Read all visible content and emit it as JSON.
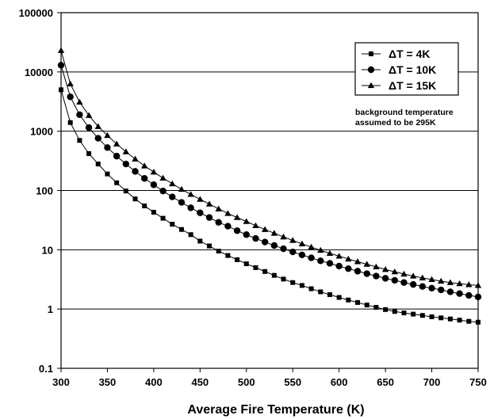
{
  "chart_data": {
    "type": "line",
    "xlabel": "Average Fire Temperature (K)",
    "ylabel": "",
    "xlim": [
      300,
      750
    ],
    "ylim": [
      0.1,
      100000
    ],
    "yscale": "log",
    "x_ticks": [
      "300",
      "350",
      "400",
      "450",
      "500",
      "550",
      "600",
      "650",
      "700",
      "750"
    ],
    "y_ticks": [
      "0.1",
      "1",
      "10",
      "100",
      "1000",
      "10000",
      "100000"
    ],
    "grid": "horizontal",
    "legend_position": "top-right",
    "annotation": [
      "background temperature",
      "assumed to be 295K"
    ],
    "x": [
      300,
      310,
      320,
      330,
      340,
      350,
      360,
      370,
      380,
      390,
      400,
      410,
      420,
      430,
      440,
      450,
      460,
      470,
      480,
      490,
      500,
      510,
      520,
      530,
      540,
      550,
      560,
      570,
      580,
      590,
      600,
      610,
      620,
      630,
      640,
      650,
      660,
      670,
      680,
      690,
      700,
      710,
      720,
      730,
      740,
      750
    ],
    "series": [
      {
        "name": "ΔT = 4K",
        "marker": "square",
        "values": [
          5000,
          1400,
          700,
          420,
          280,
          190,
          135,
          98,
          72,
          55,
          43,
          34,
          27,
          22,
          18,
          14,
          11.6,
          9.5,
          8.0,
          6.8,
          5.8,
          5.0,
          4.3,
          3.7,
          3.2,
          2.8,
          2.5,
          2.2,
          1.95,
          1.75,
          1.57,
          1.42,
          1.29,
          1.17,
          1.07,
          0.98,
          0.91,
          0.86,
          0.82,
          0.78,
          0.74,
          0.71,
          0.68,
          0.65,
          0.62,
          0.6
        ]
      },
      {
        "name": "ΔT = 10K",
        "marker": "circle",
        "values": [
          13000,
          3800,
          1900,
          1150,
          760,
          530,
          380,
          280,
          210,
          160,
          125,
          98,
          78,
          63,
          51,
          42,
          35,
          29,
          25,
          21,
          18,
          15.5,
          13.5,
          11.8,
          10.4,
          9.2,
          8.2,
          7.3,
          6.5,
          5.9,
          5.3,
          4.8,
          4.35,
          3.95,
          3.6,
          3.3,
          3.05,
          2.8,
          2.6,
          2.4,
          2.25,
          2.1,
          1.95,
          1.82,
          1.7,
          1.6
        ]
      },
      {
        "name": "ΔT = 15K",
        "marker": "triangle",
        "values": [
          23000,
          6300,
          3100,
          1850,
          1200,
          850,
          610,
          450,
          340,
          260,
          205,
          162,
          130,
          105,
          86,
          71,
          59,
          49,
          41,
          35,
          30,
          25.5,
          22,
          19,
          16.5,
          14.4,
          12.6,
          11.1,
          9.8,
          8.7,
          7.8,
          7.0,
          6.3,
          5.7,
          5.15,
          4.65,
          4.25,
          3.9,
          3.6,
          3.35,
          3.15,
          2.95,
          2.8,
          2.68,
          2.58,
          2.5
        ]
      }
    ]
  }
}
